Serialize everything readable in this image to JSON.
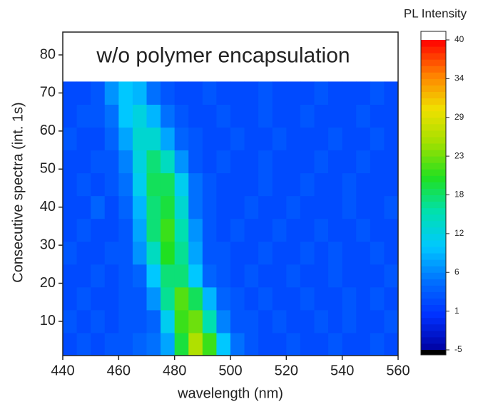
{
  "chart_data": {
    "type": "heatmap",
    "annotation": "w/o polymer encapsulation",
    "x_label": "wavelength (nm)",
    "y_label": "Consecutive spectra (int. 1s)",
    "colorbar_label": "PL Intensity",
    "xlim": [
      440,
      560
    ],
    "xticks": [
      440,
      460,
      480,
      500,
      520,
      540,
      560
    ],
    "ylim": [
      1,
      86
    ],
    "yticks": [
      10,
      20,
      30,
      40,
      50,
      60,
      70,
      80
    ],
    "xbins": [
      440,
      445,
      450,
      455,
      460,
      465,
      470,
      475,
      480,
      485,
      490,
      495,
      500,
      505,
      510,
      515,
      520,
      525,
      530,
      535,
      540,
      545,
      550,
      555,
      560
    ],
    "ybins": [
      1,
      7,
      13,
      19,
      25,
      31,
      37,
      43,
      49,
      55,
      61,
      67,
      73
    ],
    "values": [
      [
        2,
        3,
        2,
        3,
        3,
        4,
        5,
        8,
        19,
        26,
        21,
        10,
        5,
        3,
        2,
        2,
        3,
        2,
        2,
        3,
        2,
        2,
        3,
        2
      ],
      [
        3,
        2,
        3,
        2,
        3,
        3,
        4,
        11,
        21,
        23,
        15,
        6,
        3,
        3,
        2,
        3,
        2,
        2,
        3,
        2,
        3,
        2,
        2,
        3
      ],
      [
        2,
        3,
        2,
        2,
        3,
        3,
        7,
        16,
        22,
        18,
        9,
        4,
        3,
        2,
        3,
        2,
        2,
        3,
        2,
        2,
        3,
        2,
        3,
        2
      ],
      [
        2,
        2,
        3,
        2,
        3,
        4,
        10,
        17,
        17,
        10,
        4,
        3,
        2,
        3,
        2,
        2,
        3,
        2,
        2,
        3,
        2,
        2,
        2,
        3
      ],
      [
        3,
        2,
        2,
        3,
        3,
        7,
        14,
        20,
        16,
        8,
        3,
        3,
        2,
        2,
        3,
        2,
        2,
        3,
        2,
        3,
        2,
        2,
        3,
        2
      ],
      [
        2,
        3,
        2,
        2,
        3,
        8,
        17,
        21,
        15,
        7,
        3,
        2,
        3,
        2,
        2,
        3,
        2,
        2,
        3,
        2,
        2,
        3,
        2,
        2
      ],
      [
        2,
        2,
        4,
        2,
        4,
        9,
        17,
        19,
        13,
        5,
        3,
        2,
        2,
        3,
        2,
        2,
        3,
        2,
        2,
        2,
        3,
        2,
        2,
        3
      ],
      [
        2,
        3,
        2,
        3,
        5,
        11,
        18,
        18,
        11,
        5,
        3,
        2,
        2,
        2,
        3,
        2,
        2,
        3,
        2,
        2,
        3,
        2,
        2,
        2
      ],
      [
        2,
        2,
        3,
        3,
        6,
        12,
        17,
        14,
        7,
        3,
        2,
        3,
        2,
        2,
        3,
        2,
        2,
        2,
        3,
        2,
        2,
        3,
        2,
        2
      ],
      [
        3,
        2,
        2,
        4,
        8,
        13,
        13,
        8,
        4,
        3,
        2,
        2,
        3,
        2,
        2,
        3,
        2,
        2,
        2,
        3,
        2,
        2,
        3,
        2
      ],
      [
        2,
        3,
        3,
        5,
        10,
        12,
        9,
        5,
        3,
        2,
        2,
        3,
        2,
        2,
        3,
        2,
        2,
        3,
        2,
        2,
        2,
        3,
        2,
        2
      ],
      [
        2,
        2,
        3,
        7,
        10,
        9,
        5,
        3,
        2,
        2,
        3,
        2,
        2,
        2,
        3,
        2,
        2,
        2,
        3,
        2,
        2,
        2,
        3,
        2
      ]
    ],
    "clim": [
      -5,
      40
    ],
    "cticks": [
      {
        "value": -5,
        "label": "-5"
      },
      {
        "value": 0.625,
        "label": "1"
      },
      {
        "value": 6.25,
        "label": "6"
      },
      {
        "value": 11.875,
        "label": "12"
      },
      {
        "value": 17.5,
        "label": "18"
      },
      {
        "value": 23.125,
        "label": "23"
      },
      {
        "value": 28.75,
        "label": "29"
      },
      {
        "value": 34.375,
        "label": "34"
      },
      {
        "value": 40,
        "label": "40"
      }
    ],
    "colormap": [
      "#0000a0",
      "#0030ff",
      "#0070ff",
      "#00c8ff",
      "#00e0b0",
      "#20e020",
      "#a0e000",
      "#f0e000",
      "#ff8000",
      "#ff0000"
    ],
    "under_color": "#000000",
    "over_color": "#ffffff"
  }
}
